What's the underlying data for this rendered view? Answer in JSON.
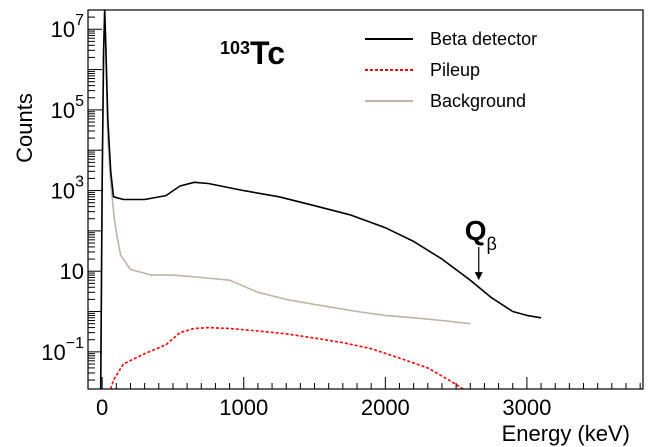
{
  "chart_data": {
    "type": "line",
    "title": "",
    "xlabel": "Energy (keV)",
    "ylabel": "Counts",
    "xlim": [
      -100,
      3820
    ],
    "ylim": [
      0.012,
      30000000
    ],
    "y_scale": "log",
    "grid": false,
    "legend_position": "top-right",
    "isotope_label": {
      "mass": "103",
      "element": "Tc"
    },
    "annotation": {
      "text": "Q",
      "subscript": "β",
      "x": 2660,
      "arrow_to_y": 6
    },
    "x_ticks": [
      {
        "value": 0,
        "label": "0"
      },
      {
        "value": 1000,
        "label": "1000"
      },
      {
        "value": 2000,
        "label": "2000"
      },
      {
        "value": 3000,
        "label": "3000"
      }
    ],
    "y_ticks": [
      {
        "value": 10000000,
        "base": "10",
        "exp": "7"
      },
      {
        "value": 100000,
        "base": "10",
        "exp": "5"
      },
      {
        "value": 1000,
        "base": "10",
        "exp": "3"
      },
      {
        "value": 10,
        "base": "10",
        "exp": ""
      },
      {
        "value": 0.1,
        "base": "10",
        "exp": "−1"
      }
    ],
    "series": [
      {
        "name": "Background",
        "color": "#bfb3a6",
        "style": "solid",
        "points": [
          [
            -10,
            0.012
          ],
          [
            0,
            1500
          ],
          [
            10,
            2000000
          ],
          [
            18,
            30000000
          ],
          [
            26,
            3000000
          ],
          [
            40,
            20000
          ],
          [
            60,
            1500
          ],
          [
            90,
            150
          ],
          [
            130,
            25
          ],
          [
            200,
            11
          ],
          [
            350,
            8
          ],
          [
            500,
            8
          ],
          [
            700,
            7
          ],
          [
            900,
            6
          ],
          [
            1100,
            3
          ],
          [
            1300,
            2
          ],
          [
            1500,
            1.5
          ],
          [
            1800,
            1
          ],
          [
            2000,
            0.8
          ],
          [
            2200,
            0.7
          ],
          [
            2400,
            0.6
          ],
          [
            2600,
            0.5
          ]
        ]
      },
      {
        "name": "Beta detector",
        "color": "#000000",
        "style": "solid",
        "points": [
          [
            -10,
            0.012
          ],
          [
            0,
            2000
          ],
          [
            10,
            3000000
          ],
          [
            18,
            30000000
          ],
          [
            26,
            4000000
          ],
          [
            40,
            60000
          ],
          [
            60,
            3000
          ],
          [
            80,
            700
          ],
          [
            150,
            600
          ],
          [
            300,
            600
          ],
          [
            450,
            750
          ],
          [
            550,
            1300
          ],
          [
            650,
            1600
          ],
          [
            750,
            1500
          ],
          [
            1000,
            1000
          ],
          [
            1250,
            700
          ],
          [
            1500,
            420
          ],
          [
            1750,
            250
          ],
          [
            2000,
            120
          ],
          [
            2200,
            55
          ],
          [
            2400,
            20
          ],
          [
            2600,
            6
          ],
          [
            2750,
            2.2
          ],
          [
            2900,
            1
          ],
          [
            3000,
            0.8
          ],
          [
            3100,
            0.7
          ]
        ]
      },
      {
        "name": "Pileup",
        "color": "#ff0000",
        "style": "dashed",
        "points": [
          [
            60,
            0.012
          ],
          [
            80,
            0.02
          ],
          [
            150,
            0.05
          ],
          [
            300,
            0.09
          ],
          [
            450,
            0.15
          ],
          [
            550,
            0.3
          ],
          [
            650,
            0.38
          ],
          [
            750,
            0.4
          ],
          [
            900,
            0.38
          ],
          [
            1100,
            0.33
          ],
          [
            1300,
            0.28
          ],
          [
            1500,
            0.22
          ],
          [
            1700,
            0.17
          ],
          [
            1900,
            0.12
          ],
          [
            2100,
            0.07
          ],
          [
            2300,
            0.04
          ],
          [
            2450,
            0.02
          ],
          [
            2550,
            0.012
          ]
        ]
      }
    ]
  }
}
